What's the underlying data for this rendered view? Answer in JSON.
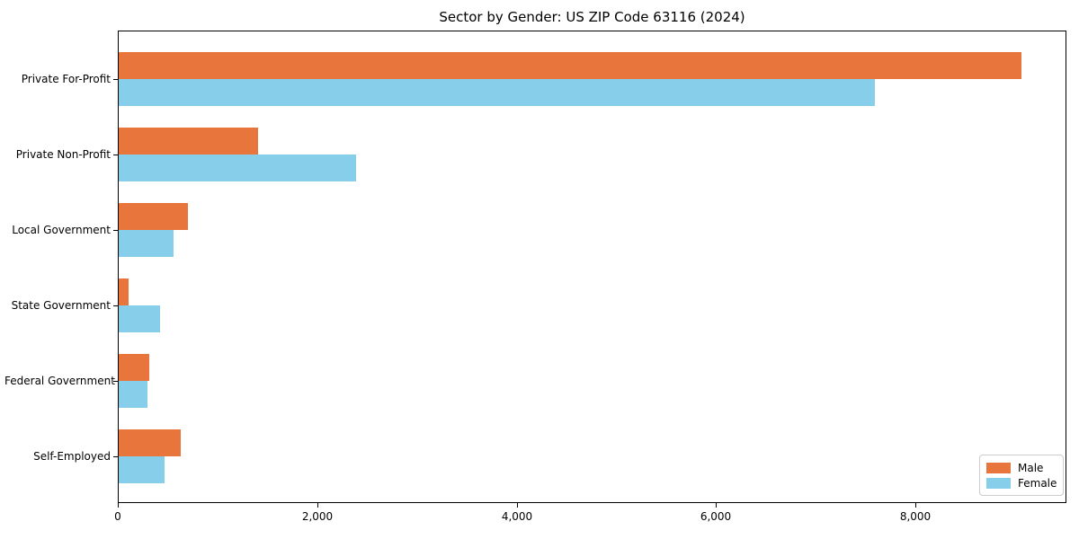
{
  "title": "Sector by Gender: US ZIP Code 63116 (2024)",
  "chart_data": {
    "type": "bar",
    "orientation": "horizontal",
    "title": "Sector by Gender: US ZIP Code 63116 (2024)",
    "categories": [
      "Private For-Profit",
      "Private Non-Profit",
      "Local Government",
      "State Government",
      "Federal Government",
      "Self-Employed"
    ],
    "series": [
      {
        "name": "Male",
        "color": "#e8763c",
        "values": [
          9060,
          1410,
          700,
          110,
          320,
          630
        ]
      },
      {
        "name": "Female",
        "color": "#87ceeb",
        "values": [
          7590,
          2390,
          560,
          420,
          300,
          470
        ]
      }
    ],
    "xlabel": "",
    "ylabel": "",
    "xlim": [
      0,
      9515
    ],
    "x_tick_values": [
      0,
      2000,
      4000,
      6000,
      8000
    ],
    "x_tick_labels": [
      "0",
      "2,000",
      "4,000",
      "6,000",
      "8,000"
    ],
    "grid": false,
    "legend_position": "lower right",
    "background_color": "#ffffff",
    "axis_color": "#000000"
  }
}
